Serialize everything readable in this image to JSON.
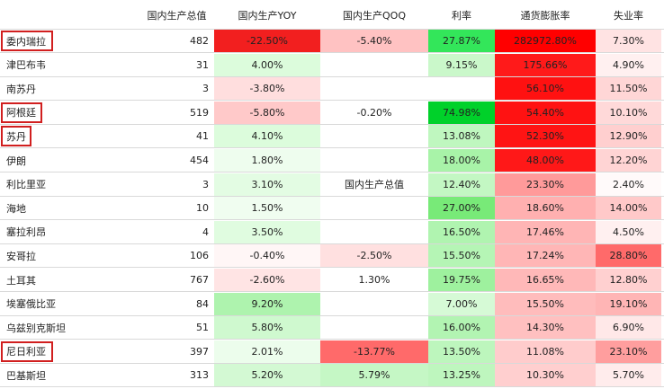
{
  "headers": {
    "gdp": "国内生产总值",
    "yoy": "国内生产YOY",
    "qoq": "国内生产QOQ",
    "rate": "利率",
    "inflation": "通货膨胀率",
    "unemployment": "失业率"
  },
  "rows": [
    {
      "name": "委内瑞拉",
      "gdp": "482",
      "yoy": "-22.50%",
      "qoq": "-5.40%",
      "rate": "27.87%",
      "inflation": "282972.80%",
      "unemployment": "7.30%",
      "highlighted": true,
      "bg": {
        "yoy": "#f21f1f",
        "qoq": "#ffc2c2",
        "rate": "#33e65a",
        "inflation": "#ff0000",
        "unemployment": "#ffe3e3"
      }
    },
    {
      "name": "津巴布韦",
      "gdp": "31",
      "yoy": "4.00%",
      "qoq": "",
      "rate": "9.15%",
      "inflation": "175.66%",
      "unemployment": "4.90%",
      "highlighted": false,
      "bg": {
        "yoy": "#dcfcdc",
        "qoq": "#ffffff",
        "rate": "#caf8ca",
        "inflation": "#ff1a1a",
        "unemployment": "#fff0f0"
      }
    },
    {
      "name": "南苏丹",
      "gdp": "3",
      "yoy": "-3.80%",
      "qoq": "",
      "rate": "",
      "inflation": "56.10%",
      "unemployment": "11.50%",
      "highlighted": false,
      "bg": {
        "yoy": "#ffdede",
        "qoq": "#ffffff",
        "rate": "#ffffff",
        "inflation": "#ff1111",
        "unemployment": "#ffd6d6"
      }
    },
    {
      "name": "阿根廷",
      "gdp": "519",
      "yoy": "-5.80%",
      "qoq": "-0.20%",
      "rate": "74.98%",
      "inflation": "54.40%",
      "unemployment": "10.10%",
      "highlighted": true,
      "bg": {
        "yoy": "#ffc9c9",
        "qoq": "#ffffff",
        "rate": "#00d12a",
        "inflation": "#ff1212",
        "unemployment": "#ffd9d9"
      }
    },
    {
      "name": "苏丹",
      "gdp": "41",
      "yoy": "4.10%",
      "qoq": "",
      "rate": "13.08%",
      "inflation": "52.30%",
      "unemployment": "12.90%",
      "highlighted": true,
      "bg": {
        "yoy": "#dcfcdc",
        "qoq": "#ffffff",
        "rate": "#bff7bf",
        "inflation": "#ff1414",
        "unemployment": "#ffcfcf"
      }
    },
    {
      "name": "伊朗",
      "gdp": "454",
      "yoy": "1.80%",
      "qoq": "",
      "rate": "18.00%",
      "inflation": "48.00%",
      "unemployment": "12.20%",
      "highlighted": false,
      "bg": {
        "yoy": "#eefdee",
        "qoq": "#ffffff",
        "rate": "#a8f3a8",
        "inflation": "#ff1818",
        "unemployment": "#ffd4d4"
      }
    },
    {
      "name": "利比里亚",
      "gdp": "3",
      "yoy": "3.10%",
      "qoq": "国内生产总值",
      "rate": "12.40%",
      "inflation": "23.30%",
      "unemployment": "2.40%",
      "highlighted": false,
      "bg": {
        "yoy": "#e3fce3",
        "qoq": "#ffffff",
        "rate": "#c3f7c3",
        "inflation": "#ff9a9a",
        "unemployment": "#fffafa"
      }
    },
    {
      "name": "海地",
      "gdp": "10",
      "yoy": "1.50%",
      "qoq": "",
      "rate": "27.00%",
      "inflation": "18.60%",
      "unemployment": "14.00%",
      "highlighted": false,
      "bg": {
        "yoy": "#f0fdf0",
        "qoq": "#ffffff",
        "rate": "#78ea78",
        "inflation": "#ffb0b0",
        "unemployment": "#ffc9c9"
      }
    },
    {
      "name": "塞拉利昂",
      "gdp": "4",
      "yoy": "3.50%",
      "qoq": "",
      "rate": "16.50%",
      "inflation": "17.46%",
      "unemployment": "4.50%",
      "highlighted": false,
      "bg": {
        "yoy": "#e0fce0",
        "qoq": "#ffffff",
        "rate": "#b0f4b0",
        "inflation": "#ffb5b5",
        "unemployment": "#fff0f0"
      }
    },
    {
      "name": "安哥拉",
      "gdp": "106",
      "yoy": "-0.40%",
      "qoq": "-2.50%",
      "rate": "15.50%",
      "inflation": "17.24%",
      "unemployment": "28.80%",
      "highlighted": false,
      "bg": {
        "yoy": "#fff6f6",
        "qoq": "#ffe0e0",
        "rate": "#b5f5b5",
        "inflation": "#ffb6b6",
        "unemployment": "#ff6a6a"
      }
    },
    {
      "name": "土耳其",
      "gdp": "767",
      "yoy": "-2.60%",
      "qoq": "1.30%",
      "rate": "19.75%",
      "inflation": "16.65%",
      "unemployment": "12.80%",
      "highlighted": false,
      "bg": {
        "yoy": "#ffe4e4",
        "qoq": "#ffffff",
        "rate": "#9ef19e",
        "inflation": "#ffb8b8",
        "unemployment": "#ffd0d0"
      }
    },
    {
      "name": "埃塞俄比亚",
      "gdp": "84",
      "yoy": "9.20%",
      "qoq": "",
      "rate": "7.00%",
      "inflation": "15.50%",
      "unemployment": "19.10%",
      "highlighted": false,
      "bg": {
        "yoy": "#aef3ae",
        "qoq": "#ffffff",
        "rate": "#d6fad6",
        "inflation": "#ffbcbc",
        "unemployment": "#ffb5b5"
      }
    },
    {
      "name": "乌兹别克斯坦",
      "gdp": "51",
      "yoy": "5.80%",
      "qoq": "",
      "rate": "16.00%",
      "inflation": "14.30%",
      "unemployment": "6.90%",
      "highlighted": false,
      "bg": {
        "yoy": "#cff9cf",
        "qoq": "#ffffff",
        "rate": "#b2f4b2",
        "inflation": "#ffc0c0",
        "unemployment": "#ffe8e8"
      }
    },
    {
      "name": "尼日利亚",
      "gdp": "397",
      "yoy": "2.01%",
      "qoq": "-13.77%",
      "rate": "13.50%",
      "inflation": "11.08%",
      "unemployment": "23.10%",
      "highlighted": true,
      "bg": {
        "yoy": "#ecfdec",
        "qoq": "#ff6a6a",
        "rate": "#bdf6bd",
        "inflation": "#ffcccc",
        "unemployment": "#ff9e9e"
      }
    },
    {
      "name": "巴基斯坦",
      "gdp": "313",
      "yoy": "5.20%",
      "qoq": "5.79%",
      "rate": "13.25%",
      "inflation": "10.30%",
      "unemployment": "5.70%",
      "highlighted": false,
      "bg": {
        "yoy": "#d3f9d3",
        "qoq": "#c5f7c5",
        "rate": "#bef6be",
        "inflation": "#ffcfcf",
        "unemployment": "#ffecec"
      }
    }
  ]
}
